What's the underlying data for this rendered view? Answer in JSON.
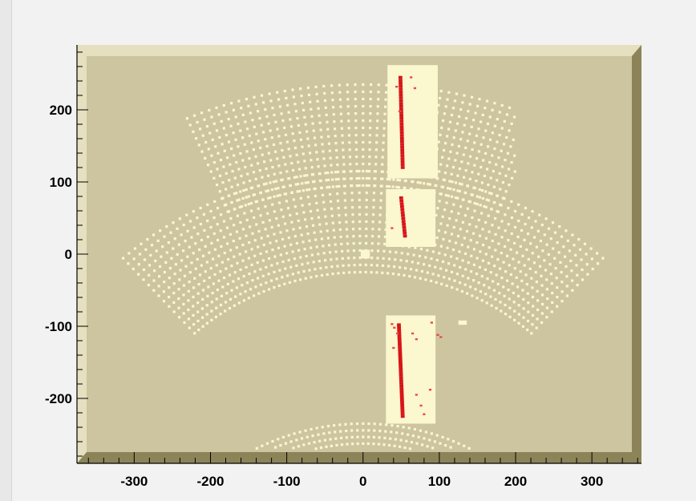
{
  "chart_data": {
    "type": "scatter",
    "title": "",
    "xlabel": "",
    "ylabel": "",
    "xlim": [
      -375,
      365
    ],
    "ylim": [
      -290,
      290
    ],
    "x_ticks": [
      -300,
      -200,
      -100,
      0,
      100,
      200,
      300
    ],
    "y_ticks": [
      -200,
      -100,
      0,
      100,
      200
    ],
    "grid": false,
    "legend": "none",
    "colors": {
      "frame_fill": "#cdc59f",
      "frame_bevel_light": "#e6e0c0",
      "frame_bevel_dark": "#8c8458",
      "cell": "#fbf6d2",
      "panel": "#fbf7cf",
      "hit": "#d81418",
      "hit_light": "#ea4a4a"
    },
    "regions": [
      {
        "name": "upper",
        "r_inner": 450,
        "r_outer": 590,
        "y_center": -355,
        "phi_deg": [
          -23,
          23
        ],
        "x_range": [
          -260,
          200
        ],
        "rows": 15,
        "cols": 47,
        "has_gap_x": [
          -115,
          -15,
          95
        ]
      },
      {
        "name": "middle",
        "r_inner": 330,
        "r_outer": 470,
        "y_center": -355,
        "phi_deg": [
          -42,
          42
        ],
        "x_range": [
          -355,
          340
        ],
        "rows": 15,
        "cols": 68
      },
      {
        "name": "lower",
        "r_inner": 180,
        "r_outer": 300,
        "y_center": -535,
        "phi_deg": [
          -32,
          32
        ],
        "x_range": [
          -210,
          255
        ],
        "rows": 14,
        "cols": 45
      }
    ],
    "panels": [
      {
        "x": [
          32,
          98
        ],
        "y": [
          105,
          262
        ]
      },
      {
        "x": [
          30,
          95
        ],
        "y": [
          10,
          90
        ]
      },
      {
        "x": [
          30,
          95
        ],
        "y": [
          -235,
          -85
        ]
      },
      {
        "x": [
          -3,
          9
        ],
        "y": [
          -6,
          6
        ]
      },
      {
        "x": [
          125,
          136
        ],
        "y": [
          -98,
          -92
        ]
      }
    ],
    "hit_tracks": [
      {
        "x0": 49,
        "x1": 52,
        "y0": 245,
        "y1": 120,
        "n": 32
      },
      {
        "x0": 50,
        "x1": 55,
        "y0": 78,
        "y1": 25,
        "n": 14
      },
      {
        "x0": 47,
        "x1": 52,
        "y0": -98,
        "y1": -225,
        "n": 34
      }
    ],
    "hit_clusters": [
      {
        "x": 63,
        "y": 245
      },
      {
        "x": 68,
        "y": 230
      },
      {
        "x": 44,
        "y": 232
      },
      {
        "x": 48,
        "y": 198
      },
      {
        "x": 38,
        "y": 36
      },
      {
        "x": 38,
        "y": -97
      },
      {
        "x": 41,
        "y": -102
      },
      {
        "x": 45,
        "y": -110
      },
      {
        "x": 40,
        "y": -130
      },
      {
        "x": 65,
        "y": -110
      },
      {
        "x": 70,
        "y": -118
      },
      {
        "x": 102,
        "y": -115
      },
      {
        "x": 98,
        "y": -112
      },
      {
        "x": 90,
        "y": -95
      },
      {
        "x": 70,
        "y": -195
      },
      {
        "x": 76,
        "y": -210
      },
      {
        "x": 80,
        "y": -222
      },
      {
        "x": 88,
        "y": -188
      }
    ]
  }
}
